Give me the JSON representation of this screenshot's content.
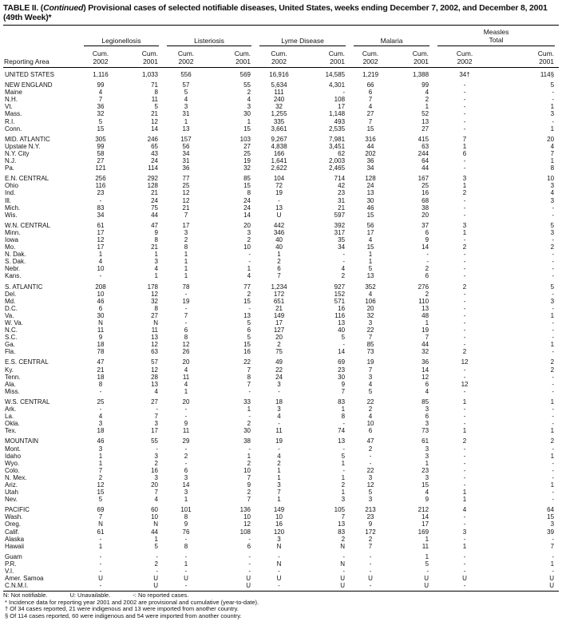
{
  "title": {
    "prefix": "TABLE II. (",
    "italic": "Continued",
    "rest": ") Provisional cases of selected notifiable diseases, United States, weeks ending December 7, 2002, and December 8, 2001 (49th Week)*"
  },
  "header": {
    "area_label": "Reporting Area",
    "groups": [
      "Legionellosis",
      "Listeriosis",
      "Lyme Disease",
      "Malaria",
      "Measles Total"
    ],
    "cols": [
      "Cum. 2002",
      "Cum. 2001",
      "Cum. 2002",
      "Cum. 2001",
      "Cum. 2002",
      "Cum. 2001",
      "Cum. 2002",
      "Cum. 2001",
      "Cum. 2002",
      "Cum. 2001"
    ]
  },
  "rows": [
    [
      "UNITED STATES",
      "1,116",
      "1,033",
      "556",
      "569",
      "16,916",
      "14,585",
      "1,219",
      "1,388",
      "34†",
      "114§"
    ],
    null,
    [
      "NEW ENGLAND",
      "99",
      "71",
      "57",
      "55",
      "5,634",
      "4,301",
      "66",
      "99",
      "-",
      "5"
    ],
    [
      "Maine",
      "4",
      "8",
      "5",
      "2",
      "111",
      "-",
      "6",
      "4",
      "-",
      "-"
    ],
    [
      "N.H.",
      "7",
      "11",
      "4",
      "4",
      "240",
      "108",
      "7",
      "2",
      "-",
      "-"
    ],
    [
      "Vt.",
      "36",
      "5",
      "3",
      "3",
      "32",
      "17",
      "4",
      "1",
      "-",
      "1"
    ],
    [
      "Mass.",
      "32",
      "21",
      "31",
      "30",
      "1,255",
      "1,148",
      "27",
      "52",
      "-",
      "3"
    ],
    [
      "R.I.",
      "5",
      "12",
      "1",
      "1",
      "335",
      "493",
      "7",
      "13",
      "-",
      "-"
    ],
    [
      "Conn.",
      "15",
      "14",
      "13",
      "15",
      "3,661",
      "2,535",
      "15",
      "27",
      "-",
      "1"
    ],
    null,
    [
      "MID. ATLANTIC",
      "305",
      "246",
      "157",
      "103",
      "9,267",
      "7,981",
      "316",
      "415",
      "7",
      "20"
    ],
    [
      "Upstate N.Y.",
      "99",
      "65",
      "56",
      "27",
      "4,838",
      "3,451",
      "44",
      "63",
      "1",
      "4"
    ],
    [
      "N.Y. City",
      "58",
      "43",
      "34",
      "25",
      "166",
      "62",
      "202",
      "244",
      "6",
      "7"
    ],
    [
      "N.J.",
      "27",
      "24",
      "31",
      "19",
      "1,641",
      "2,003",
      "36",
      "64",
      "-",
      "1"
    ],
    [
      "Pa.",
      "121",
      "114",
      "36",
      "32",
      "2,622",
      "2,465",
      "34",
      "44",
      "-",
      "8"
    ],
    null,
    [
      "E.N. CENTRAL",
      "256",
      "292",
      "77",
      "85",
      "104",
      "714",
      "128",
      "167",
      "3",
      "10"
    ],
    [
      "Ohio",
      "116",
      "128",
      "25",
      "15",
      "72",
      "42",
      "24",
      "25",
      "1",
      "3"
    ],
    [
      "Ind.",
      "23",
      "21",
      "12",
      "8",
      "19",
      "23",
      "13",
      "16",
      "2",
      "4"
    ],
    [
      "Ill.",
      "-",
      "24",
      "12",
      "24",
      "-",
      "31",
      "30",
      "68",
      "-",
      "3"
    ],
    [
      "Mich.",
      "83",
      "75",
      "21",
      "24",
      "13",
      "21",
      "46",
      "38",
      "-",
      "-"
    ],
    [
      "Wis.",
      "34",
      "44",
      "7",
      "14",
      "U",
      "597",
      "15",
      "20",
      "-",
      "-"
    ],
    null,
    [
      "W.N. CENTRAL",
      "61",
      "47",
      "17",
      "20",
      "442",
      "392",
      "56",
      "37",
      "3",
      "5"
    ],
    [
      "Minn.",
      "17",
      "9",
      "3",
      "3",
      "346",
      "317",
      "17",
      "6",
      "1",
      "3"
    ],
    [
      "Iowa",
      "12",
      "8",
      "2",
      "2",
      "40",
      "35",
      "4",
      "9",
      "-",
      "-"
    ],
    [
      "Mo.",
      "17",
      "21",
      "8",
      "10",
      "40",
      "34",
      "15",
      "14",
      "2",
      "2"
    ],
    [
      "N. Dak.",
      "1",
      "1",
      "1",
      "-",
      "1",
      "-",
      "1",
      "-",
      "-",
      "-"
    ],
    [
      "S. Dak.",
      "4",
      "3",
      "1",
      "-",
      "2",
      "-",
      "1",
      "-",
      "-",
      "-"
    ],
    [
      "Nebr.",
      "10",
      "4",
      "1",
      "1",
      "6",
      "4",
      "5",
      "2",
      "-",
      "-"
    ],
    [
      "Kans.",
      "-",
      "1",
      "1",
      "4",
      "7",
      "2",
      "13",
      "6",
      "-",
      "-"
    ],
    null,
    [
      "S. ATLANTIC",
      "208",
      "178",
      "78",
      "77",
      "1,234",
      "927",
      "352",
      "276",
      "2",
      "5"
    ],
    [
      "Del.",
      "10",
      "12",
      "-",
      "2",
      "172",
      "152",
      "4",
      "2",
      "-",
      "-"
    ],
    [
      "Md.",
      "46",
      "32",
      "19",
      "15",
      "651",
      "571",
      "106",
      "110",
      "-",
      "3"
    ],
    [
      "D.C.",
      "6",
      "8",
      "-",
      "-",
      "21",
      "16",
      "20",
      "13",
      "-",
      "-"
    ],
    [
      "Va.",
      "30",
      "27",
      "7",
      "13",
      "149",
      "116",
      "32",
      "48",
      "-",
      "1"
    ],
    [
      "W. Va.",
      "N",
      "N",
      "-",
      "5",
      "17",
      "13",
      "3",
      "1",
      "-",
      "-"
    ],
    [
      "N.C.",
      "11",
      "11",
      "6",
      "6",
      "127",
      "40",
      "22",
      "19",
      "-",
      "-"
    ],
    [
      "S.C.",
      "9",
      "13",
      "8",
      "5",
      "20",
      "5",
      "7",
      "7",
      "-",
      "-"
    ],
    [
      "Ga.",
      "18",
      "12",
      "12",
      "15",
      "2",
      "-",
      "85",
      "44",
      "-",
      "1"
    ],
    [
      "Fla.",
      "78",
      "63",
      "26",
      "16",
      "75",
      "14",
      "73",
      "32",
      "2",
      "-"
    ],
    null,
    [
      "E.S. CENTRAL",
      "47",
      "57",
      "20",
      "22",
      "49",
      "69",
      "19",
      "36",
      "12",
      "2"
    ],
    [
      "Ky.",
      "21",
      "12",
      "4",
      "7",
      "22",
      "23",
      "7",
      "14",
      "-",
      "2"
    ],
    [
      "Tenn.",
      "18",
      "28",
      "11",
      "8",
      "24",
      "30",
      "3",
      "12",
      "-",
      "-"
    ],
    [
      "Ala.",
      "8",
      "13",
      "4",
      "7",
      "3",
      "9",
      "4",
      "6",
      "12",
      "-"
    ],
    [
      "Miss.",
      "-",
      "4",
      "1",
      "-",
      "-",
      "7",
      "5",
      "4",
      "-",
      "-"
    ],
    null,
    [
      "W.S. CENTRAL",
      "25",
      "27",
      "20",
      "33",
      "18",
      "83",
      "22",
      "85",
      "1",
      "1"
    ],
    [
      "Ark.",
      "-",
      "-",
      "-",
      "1",
      "3",
      "1",
      "2",
      "3",
      "-",
      "-"
    ],
    [
      "La.",
      "4",
      "7",
      "-",
      "-",
      "4",
      "8",
      "4",
      "6",
      "-",
      "-"
    ],
    [
      "Okla.",
      "3",
      "3",
      "9",
      "2",
      "-",
      "-",
      "10",
      "3",
      "-",
      "-"
    ],
    [
      "Tex.",
      "18",
      "17",
      "11",
      "30",
      "11",
      "74",
      "6",
      "73",
      "1",
      "1"
    ],
    null,
    [
      "MOUNTAIN",
      "46",
      "55",
      "29",
      "38",
      "19",
      "13",
      "47",
      "61",
      "2",
      "2"
    ],
    [
      "Mont.",
      "3",
      "-",
      "-",
      "-",
      "-",
      "-",
      "2",
      "3",
      "-",
      "-"
    ],
    [
      "Idaho",
      "1",
      "3",
      "2",
      "1",
      "4",
      "5",
      "-",
      "3",
      "-",
      "1"
    ],
    [
      "Wyo.",
      "1",
      "2",
      "-",
      "2",
      "2",
      "1",
      "-",
      "1",
      "-",
      "-"
    ],
    [
      "Colo.",
      "7",
      "16",
      "6",
      "10",
      "1",
      "-",
      "22",
      "23",
      "-",
      "-"
    ],
    [
      "N. Mex.",
      "2",
      "3",
      "3",
      "7",
      "1",
      "1",
      "3",
      "3",
      "-",
      "-"
    ],
    [
      "Ariz.",
      "12",
      "20",
      "14",
      "9",
      "3",
      "2",
      "12",
      "15",
      "-",
      "1"
    ],
    [
      "Utah",
      "15",
      "7",
      "3",
      "2",
      "7",
      "1",
      "5",
      "4",
      "1",
      "-"
    ],
    [
      "Nev.",
      "5",
      "4",
      "1",
      "7",
      "1",
      "3",
      "3",
      "9",
      "1",
      "-"
    ],
    null,
    [
      "PACIFIC",
      "69",
      "60",
      "101",
      "136",
      "149",
      "105",
      "213",
      "212",
      "4",
      "64"
    ],
    [
      "Wash.",
      "7",
      "10",
      "8",
      "10",
      "10",
      "7",
      "23",
      "14",
      "-",
      "15"
    ],
    [
      "Oreg.",
      "N",
      "N",
      "9",
      "12",
      "16",
      "13",
      "9",
      "17",
      "-",
      "3"
    ],
    [
      "Calif.",
      "61",
      "44",
      "76",
      "108",
      "120",
      "83",
      "172",
      "169",
      "3",
      "39"
    ],
    [
      "Alaska",
      "-",
      "1",
      "-",
      "-",
      "3",
      "2",
      "2",
      "1",
      "-",
      "-"
    ],
    [
      "Hawaii",
      "1",
      "5",
      "8",
      "6",
      "N",
      "N",
      "7",
      "11",
      "1",
      "7"
    ],
    null,
    [
      "Guam",
      "-",
      "-",
      "-",
      "-",
      "-",
      "-",
      "-",
      "1",
      "-",
      "-"
    ],
    [
      "P.R.",
      "-",
      "2",
      "1",
      "-",
      "N",
      "N",
      "-",
      "5",
      "-",
      "1"
    ],
    [
      "V.I.",
      "-",
      "-",
      "-",
      "-",
      "-",
      "-",
      "-",
      "-",
      "-",
      "-"
    ],
    [
      "Amer. Samoa",
      "U",
      "U",
      "U",
      "U",
      "U",
      "U",
      "U",
      "U",
      "U",
      "U"
    ],
    [
      "C.N.M.I.",
      "-",
      "U",
      "-",
      "U",
      "-",
      "U",
      "-",
      "U",
      "-",
      "U"
    ]
  ],
  "footer": {
    "legend": [
      "N: Not notifiable.",
      "U: Unavailable.",
      "-: No reported cases."
    ],
    "notes": [
      "* Incidence data for reporting year 2001 and 2002 are provisional and cumulative (year-to-date).",
      "† Of 34 cases reported, 21 were indigenous and 13 were imported from another country.",
      "§ Of 114 cases reported, 60 were indigenous and 54 were imported from another country."
    ]
  }
}
